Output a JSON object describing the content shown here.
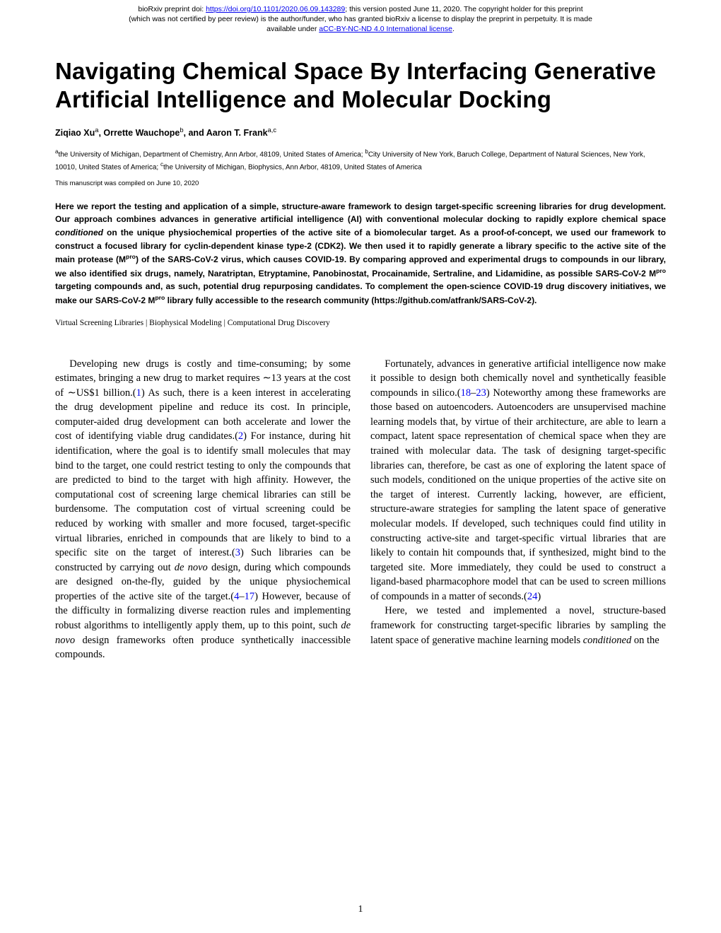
{
  "preprint": {
    "line1_prefix": "bioRxiv preprint doi: ",
    "doi_url": "https://doi.org/10.1101/2020.06.09.143289",
    "line1_suffix": "; this version posted June 11, 2020. The copyright holder for this preprint",
    "line2": "(which was not certified by peer review) is the author/funder, who has granted bioRxiv a license to display the preprint in perpetuity. It is made",
    "line3_prefix": "available under ",
    "license_text": "aCC-BY-NC-ND 4.0 International license",
    "line3_suffix": "."
  },
  "title": "Navigating Chemical Space By Interfacing Generative Artificial Intelligence and Molecular Docking",
  "authors": {
    "a1_name": "Ziqiao Xu",
    "a1_sup": "a",
    "sep1": ", ",
    "a2_name": "Orrette Wauchope",
    "a2_sup": "b",
    "sep2": ", and ",
    "a3_name": "Aaron T. Frank",
    "a3_sup": "a,c"
  },
  "affiliations": {
    "a_sup": "a",
    "a_text": "the University of Michigan, Department of Chemistry, Ann Arbor, 48109, United States of America; ",
    "b_sup": "b",
    "b_text": "City University of New York, Baruch College, Department of Natural Sciences, New York, 10010, United States of America; ",
    "c_sup": "c",
    "c_text": "the University of Michigan, Biophysics, Ann Arbor, 48109, United States of America"
  },
  "compiled": "This manuscript was compiled on June 10, 2020",
  "abstract": {
    "t1": "Here we report the testing and application of a simple, structure-aware framework to design target-specific screening libraries for drug development. Our approach combines advances in generative artificial intelligence (AI) with conventional molecular docking to rapidly explore chemical space ",
    "conditioned": "conditioned",
    "t2": " on the unique physiochemical properties of the active site of a biomolecular target. As a proof-of-concept, we used our framework to construct a focused library for cyclin-dependent kinase type-2 (CDK2). We then used it to rapidly generate a library specific to the active site of the main protease (M",
    "pro1": "pro",
    "t3": ") of the SARS-CoV-2 virus, which causes COVID-19. By comparing approved and experimental drugs to compounds in our library, we also identified six drugs, namely, Naratriptan, Etryptamine, Panobinostat, Procainamide, Sertraline, and Lidamidine, as possible SARS-CoV-2 M",
    "pro2": "pro",
    "t4": " targeting compounds and, as such, potential drug repurposing candidates. To complement the open-science COVID-19 drug discovery initiatives, we make our SARS-CoV-2 M",
    "pro3": "pro",
    "t5": " library fully accessible to the research community (https://github.com/atfrank/SARS-CoV-2)."
  },
  "keywords": "Virtual Screening Libraries | Biophysical Modeling | Computational Drug Discovery",
  "body": {
    "p1a": "Developing new drugs is costly and time-consuming; by some estimates, bringing a new drug to market requires ∼13 years at the cost of ∼US$1 billion.(",
    "r1": "1",
    "p1b": ") As such, there is a keen interest in accelerating the drug development pipeline and reduce its cost. In principle, computer-aided drug development can both accelerate and lower the cost of identifying viable drug candidates.(",
    "r2": "2",
    "p1c": ") For instance, during hit identification, where the goal is to identify small molecules that may bind to the target, one could restrict testing to only the compounds that are predicted to bind to the target with high affinity. However, the computational cost of screening large chemical libraries can still be burdensome. The computation cost of virtual screening could be reduced by working with smaller and more focused, target-specific virtual libraries, enriched in compounds that are likely to bind to a specific site on the target of interest.(",
    "r3": "3",
    "p1d": ") Such libraries can be constructed by carrying out ",
    "denovo1": "de novo",
    "p1e": " design, during which compounds are designed on-the-fly, guided by the unique physiochemical properties of the active site of the target.(",
    "r4": "4",
    "dash1": "–",
    "r17": "17",
    "p1f": ") However, because of the difficulty in formalizing diverse reaction rules and implementing robust algorithms to intelligently apply them, up to this point, such ",
    "denovo2": "de novo",
    "p1g": " design frameworks often produce synthetically inaccessible compounds.",
    "p2a": "Fortunately, advances in generative artificial intelligence now make it possible to design both chemically novel and synthetically feasible compounds in silico.(",
    "r18": "18",
    "dash2": "–",
    "r23": "23",
    "p2b": ") Noteworthy among these frameworks are those based on autoencoders. Autoencoders are unsupervised machine learning models that, by virtue of their architecture, are able to learn a compact, latent space representation of chemical space when they are trained with molecular data. The task of designing target-specific libraries can, therefore, be cast as one of exploring the latent space of such models, conditioned on the unique properties of the active site on the target of interest. Currently lacking, however, are efficient, structure-aware strategies for sampling the latent space of generative molecular models. If developed, such techniques could find utility in constructing active-site and target-specific virtual libraries that are likely to contain hit compounds that, if synthesized, might bind to the targeted site. More immediately, they could be used to construct a ligand-based pharmacophore model that can be used to screen millions of compounds in a matter of seconds.(",
    "r24": "24",
    "p2c": ")",
    "p3a": "Here, we tested and implemented a novel, structure-based framework for constructing target-specific libraries by sampling the latent space of generative machine learning models ",
    "conditioned2": "conditioned",
    "p3b": " on the"
  },
  "page_number": "1"
}
